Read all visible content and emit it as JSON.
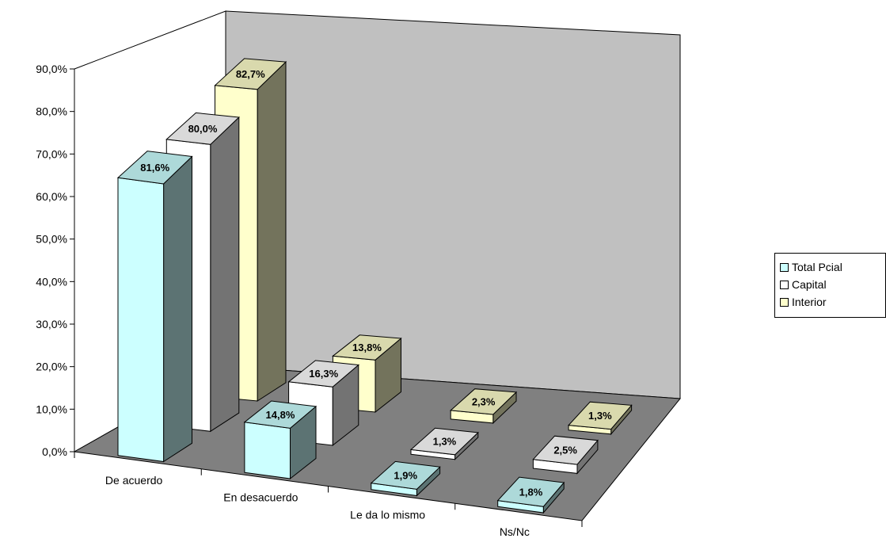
{
  "chart_data": {
    "type": "bar",
    "categories": [
      "De acuerdo",
      "En desacuerdo",
      "Le da lo mismo",
      "Ns/Nc"
    ],
    "series": [
      {
        "name": "Total Pcial",
        "values": [
          81.6,
          14.8,
          1.9,
          1.8
        ],
        "labels": [
          "81,6%",
          "14,8%",
          "1,9%",
          "1,8%"
        ],
        "color": "#CCFFFF"
      },
      {
        "name": "Capital",
        "values": [
          80.0,
          16.3,
          1.3,
          2.5
        ],
        "labels": [
          "80,0%",
          "16,3%",
          "1,3%",
          "2,5%"
        ],
        "color": "#FFFFFF"
      },
      {
        "name": "Interior",
        "values": [
          82.7,
          13.8,
          2.3,
          1.3
        ],
        "labels": [
          "82,7%",
          "13,8%",
          "2,3%",
          "1,3%"
        ],
        "color": "#FFFFCC"
      }
    ],
    "y_ticks": [
      "0,0%",
      "10,0%",
      "20,0%",
      "30,0%",
      "40,0%",
      "50,0%",
      "60,0%",
      "70,0%",
      "80,0%",
      "90,0%"
    ],
    "ylim": [
      0,
      90
    ],
    "legend_position": "right",
    "colors": {
      "back_wall": "#C0C0C0",
      "floor": "#808080",
      "axis": "#000000"
    }
  }
}
